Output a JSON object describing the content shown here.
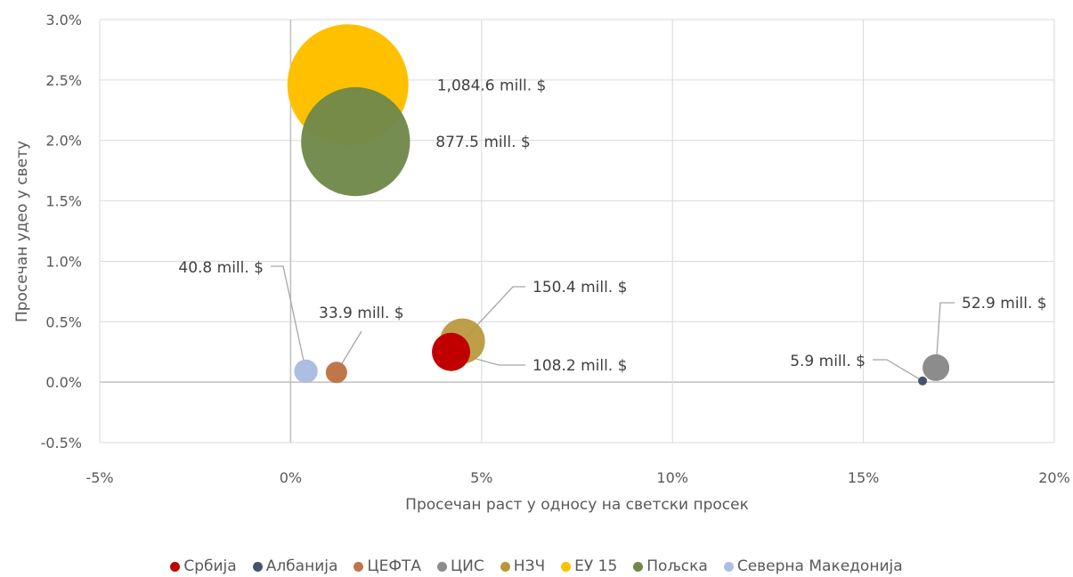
{
  "chart_data": {
    "type": "bubble",
    "xlabel": "Просечан раст у односу на светски просек",
    "ylabel": "Просечан удео у свету",
    "xlim": [
      -5,
      20
    ],
    "ylim": [
      -0.5,
      3.0
    ],
    "x_ticks": [
      "-5%",
      "0%",
      "5%",
      "10%",
      "15%",
      "20%"
    ],
    "y_ticks": [
      "-0.5%",
      "0.0%",
      "0.5%",
      "1.0%",
      "1.5%",
      "2.0%",
      "2.5%",
      "3.0%"
    ],
    "grid": true,
    "legend_position": "bottom",
    "series": [
      {
        "name": "Србија",
        "color": "#c00000",
        "x": 4.2,
        "y": 0.25,
        "size": 108.2,
        "label": "108.2 mill. $"
      },
      {
        "name": "Албанија",
        "color": "#44546a",
        "x": 16.55,
        "y": 0.01,
        "size": 5.9,
        "label": "5.9 mill. $"
      },
      {
        "name": "ЦЕФТА",
        "color": "#c0764a",
        "x": 1.2,
        "y": 0.08,
        "size": 33.9,
        "label": "33.9 mill. $"
      },
      {
        "name": "ЦИС",
        "color": "#8c8c8c",
        "x": 16.9,
        "y": 0.12,
        "size": 52.9,
        "label": "52.9 mill. $"
      },
      {
        "name": "НЗЧ",
        "color": "#b8973a",
        "x": 4.5,
        "y": 0.34,
        "size": 150.4,
        "label": "150.4 mill. $"
      },
      {
        "name": "ЕУ 15",
        "color": "#ffc000",
        "x": 1.5,
        "y": 2.46,
        "size": 1084.6,
        "label": "1,084.6 mill. $"
      },
      {
        "name": "Пољска",
        "color": "#70884a",
        "x": 1.7,
        "y": 1.99,
        "size": 877.5,
        "label": "877.5 mill. $"
      },
      {
        "name": "Северна Македонија",
        "color": "#adbee3",
        "x": 0.4,
        "y": 0.09,
        "size": 40.8,
        "label": "40.8 mill. $"
      }
    ]
  }
}
